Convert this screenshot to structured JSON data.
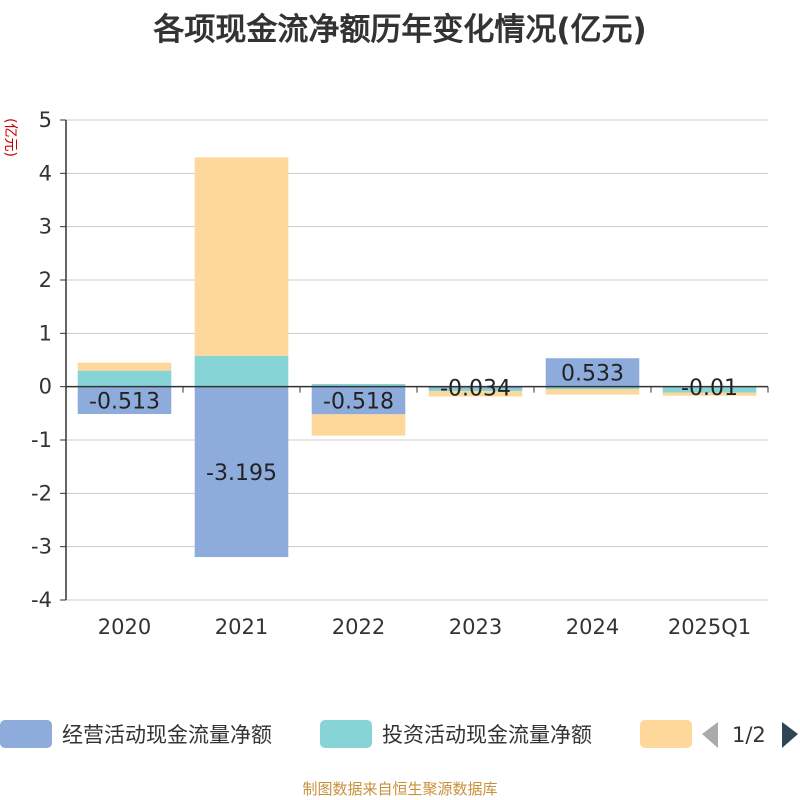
{
  "chart_data": {
    "type": "bar",
    "stacked": true,
    "title": "各项现金流净额历年变化情况(亿元)",
    "ylabel": "(亿元)",
    "ylim": [
      -4,
      5
    ],
    "yticks": [
      "-4",
      "-3",
      "-2",
      "-1",
      "0",
      "1",
      "2",
      "3",
      "4",
      "5"
    ],
    "categories": [
      "2020",
      "2021",
      "2022",
      "2023",
      "2024",
      "2025Q1"
    ],
    "series": [
      {
        "name": "经营活动现金流量净额",
        "color": "#8eacdb",
        "values": [
          -0.513,
          -3.195,
          -0.518,
          -0.034,
          0.533,
          -0.01
        ],
        "labels": [
          "-0.513",
          "-3.195",
          "-0.518",
          "-0.034",
          "0.533",
          "-0.01"
        ]
      },
      {
        "name": "投资活动现金流量净额",
        "color": "#86d4d6",
        "values": [
          0.3,
          0.58,
          0.05,
          -0.05,
          -0.05,
          -0.1
        ]
      },
      {
        "name": "",
        "color": "#fdd89a",
        "values": [
          0.15,
          3.72,
          -0.4,
          -0.1,
          -0.1,
          -0.06
        ]
      }
    ],
    "legend": {
      "position": "bottom",
      "page": "1/2"
    },
    "grid": true
  },
  "source": "制图数据来自恒生聚源数据库"
}
